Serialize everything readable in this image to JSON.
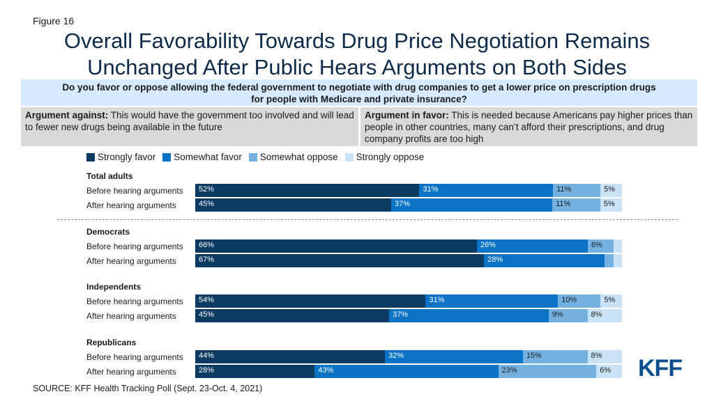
{
  "figure_label": "Figure 16",
  "title_line1": "Overall Favorability Towards Drug Price Negotiation Remains",
  "title_line2": "Unchanged After Public Hears Arguments on Both Sides",
  "question_line1": "Do you favor or oppose allowing the federal government to negotiate with drug companies to get a lower price on prescription drugs",
  "question_line2": "for people with Medicare and private insurance?",
  "argument_against": {
    "label": "Argument against:",
    "text": " This would have the government too involved and will lead to fewer new drugs being available in the future"
  },
  "argument_favor": {
    "label": "Argument in favor:",
    "text": " This is needed because Americans pay higher prices than people in other countries, many can’t afford their prescriptions, and drug company profits are too high"
  },
  "source": "SOURCE: KFF Health Tracking Poll (Sept. 23-Oct. 4, 2021)",
  "logo_text": "KFF",
  "chart_data": {
    "type": "bar",
    "orientation": "horizontal-stacked",
    "legend_position": "top-left",
    "legend": [
      {
        "name": "Strongly favor",
        "color": "#0b3a62"
      },
      {
        "name": "Somewhat favor",
        "color": "#0a73c5"
      },
      {
        "name": "Somewhat oppose",
        "color": "#75b1e0"
      },
      {
        "name": "Strongly oppose",
        "color": "#c9e2f5"
      }
    ],
    "groups": [
      {
        "name": "Total adults",
        "rows": [
          {
            "label": "Before hearing arguments",
            "values": [
              52,
              31,
              11,
              5
            ],
            "labels": [
              "52%",
              "31%",
              "11%",
              "5%"
            ]
          },
          {
            "label": "After hearing arguments",
            "values": [
              45,
              37,
              11,
              5
            ],
            "labels": [
              "45%",
              "37%",
              "11%",
              "5%"
            ]
          }
        ]
      },
      {
        "name": "Democrats",
        "rows": [
          {
            "label": "Before hearing arguments",
            "values": [
              66,
              26,
              6,
              2
            ],
            "labels": [
              "66%",
              "26%",
              "6%",
              ""
            ]
          },
          {
            "label": "After hearing arguments",
            "values": [
              67,
              28,
              2,
              2
            ],
            "labels": [
              "67%",
              "28%",
              "",
              ""
            ]
          }
        ]
      },
      {
        "name": "Independents",
        "rows": [
          {
            "label": "Before hearing arguments",
            "values": [
              54,
              31,
              10,
              5
            ],
            "labels": [
              "54%",
              "31%",
              "10%",
              "5%"
            ]
          },
          {
            "label": "After hearing arguments",
            "values": [
              45,
              37,
              9,
              8
            ],
            "labels": [
              "45%",
              "37%",
              "9%",
              "8%"
            ]
          }
        ]
      },
      {
        "name": "Republicans",
        "rows": [
          {
            "label": "Before hearing arguments",
            "values": [
              44,
              32,
              15,
              8
            ],
            "labels": [
              "44%",
              "32%",
              "15%",
              "8%"
            ]
          },
          {
            "label": "After hearing arguments",
            "values": [
              28,
              43,
              23,
              6
            ],
            "labels": [
              "28%",
              "43%",
              "23%",
              "6%"
            ]
          }
        ]
      }
    ]
  }
}
